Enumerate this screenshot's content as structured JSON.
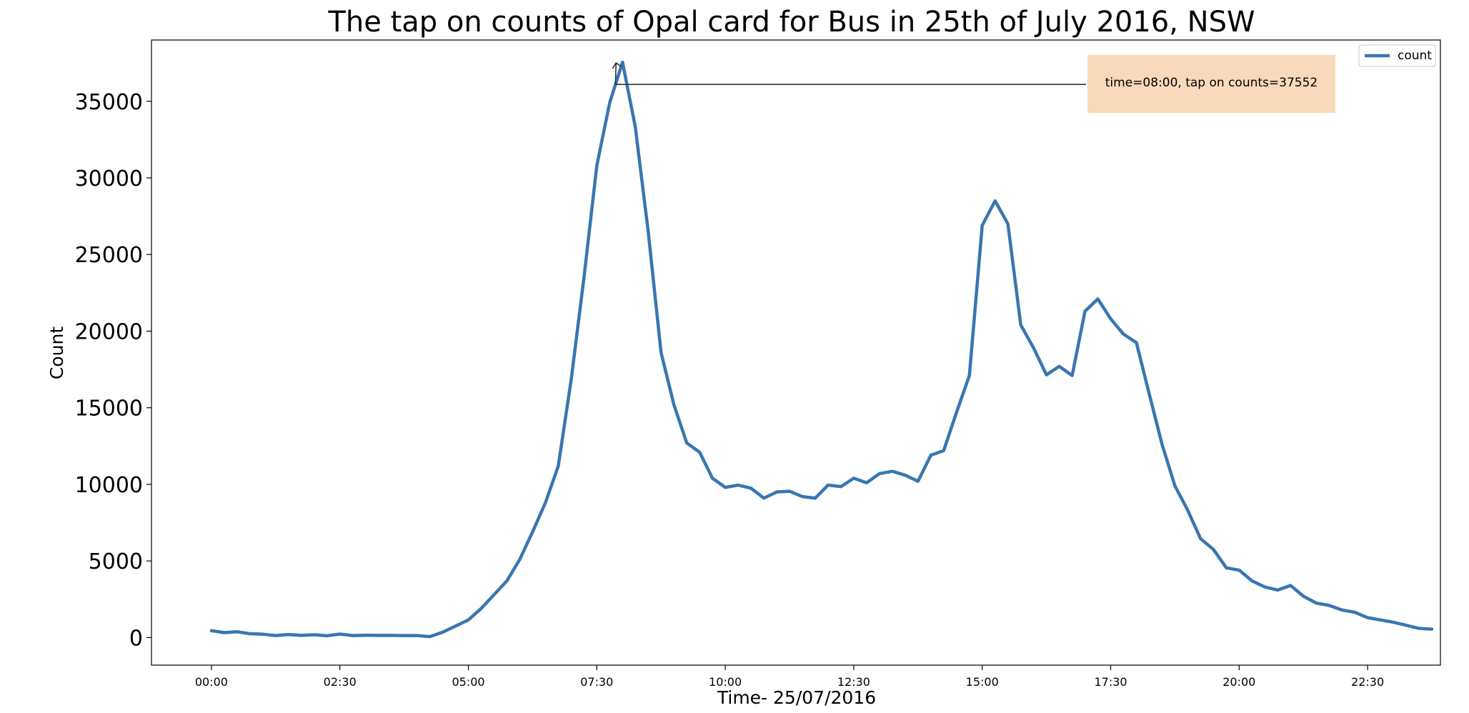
{
  "chart_data": {
    "type": "line",
    "title": "The tap on counts of Opal card for Bus in 25th of July 2016, NSW",
    "xlabel": "Time- 25/07/2016",
    "ylabel": "Count",
    "x_ticks": [
      "00:00",
      "02:30",
      "05:00",
      "07:30",
      "10:00",
      "12:30",
      "15:00",
      "17:30",
      "20:00",
      "22:30"
    ],
    "y_ticks": [
      0,
      5000,
      10000,
      15000,
      20000,
      25000,
      30000,
      35000
    ],
    "xlim_minutes": [
      -70,
      1435
    ],
    "ylim": [
      -1800,
      39000
    ],
    "grid": false,
    "legend": {
      "entries": [
        "count"
      ],
      "position": "top-right"
    },
    "series": [
      {
        "name": "count",
        "color": "#3a76b0",
        "interval_minutes": 15,
        "start_time": "00:00",
        "values": [
          450,
          320,
          380,
          250,
          220,
          130,
          200,
          140,
          180,
          120,
          230,
          130,
          150,
          140,
          140,
          130,
          130,
          60,
          350,
          750,
          1150,
          1900,
          2800,
          3700,
          5100,
          6900,
          8800,
          11200,
          16800,
          23500,
          30800,
          34900,
          37552,
          33300,
          26500,
          18600,
          15200,
          12700,
          12100,
          10400,
          9800,
          9950,
          9750,
          9100,
          9500,
          9550,
          9200,
          9100,
          9950,
          9850,
          10400,
          10100,
          10700,
          10850,
          10600,
          10200,
          11900,
          12200,
          14700,
          17100,
          26900,
          28500,
          27000,
          20400,
          18900,
          17150,
          17700,
          17100,
          21300,
          22100,
          20800,
          19800,
          19250,
          15900,
          12600,
          9900,
          8300,
          6450,
          5750,
          4550,
          4400,
          3700,
          3300,
          3100,
          3400,
          2700,
          2250,
          2100,
          1800,
          1650,
          1300,
          1150,
          1000,
          800,
          600,
          550
        ]
      }
    ],
    "annotation": {
      "text": "time=08:00, tap on counts=37552",
      "point_time": "08:00",
      "point_value": 37552,
      "box_color": "#f8d9b9"
    }
  }
}
